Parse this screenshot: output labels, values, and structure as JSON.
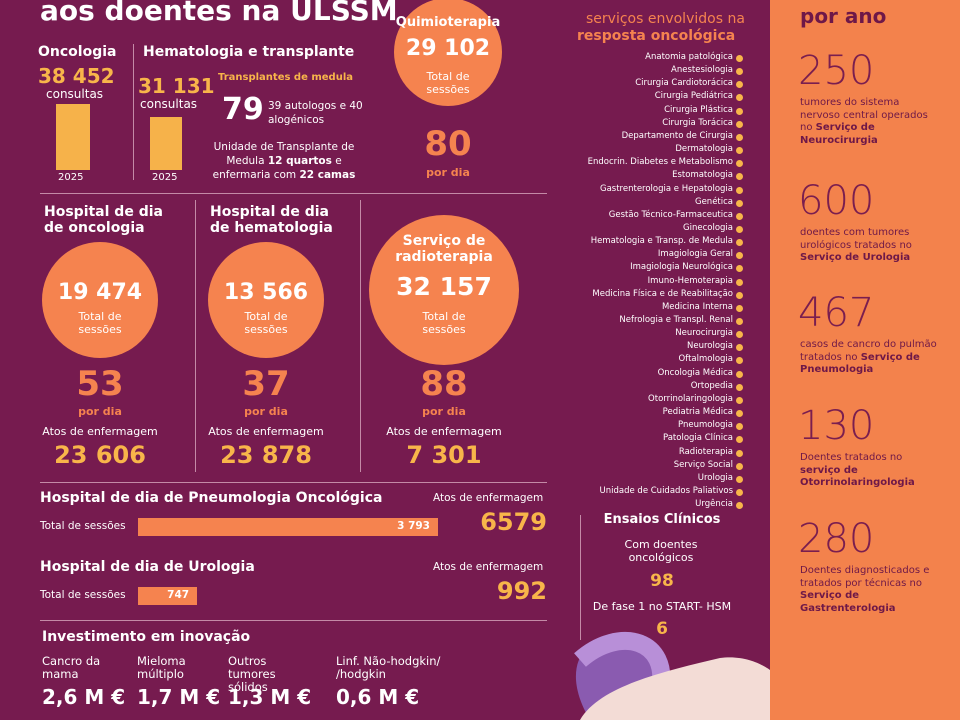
{
  "title": "aos doentes na ULSSM",
  "consultas": [
    {
      "title": "Oncologia",
      "number": {
        "value": 38452,
        "label": "38 452"
      },
      "unit": "consultas",
      "year": "2025"
    },
    {
      "title": "Hematologia e transplante",
      "number": {
        "value": 31131,
        "label": "31 131"
      },
      "unit": "consultas",
      "year": "2025"
    }
  ],
  "transplantes": {
    "title": "Transplantes de medula",
    "number": 79,
    "detail": "39 autologos e 40 alogénicos",
    "note": [
      "Unidade de Transplante de Medula",
      "12 quartos",
      "e enfermaria com",
      "22 camas"
    ]
  },
  "quimioterapia": {
    "title": "Quimioterapia",
    "number": "29 102",
    "label": "Total de sessões",
    "per_day": 80,
    "per_day_label": "por dia"
  },
  "hospitais_dia": [
    {
      "title": "Hospital de dia de oncologia",
      "number": "19 474",
      "label": "Total de sessões",
      "per_day": 53,
      "per_day_label": "por dia",
      "acts_label": "Atos de enfermagem",
      "acts": "23 606"
    },
    {
      "title": "Hospital de dia de hematologia",
      "number": "13 566",
      "label": "Total de sessões",
      "per_day": 37,
      "per_day_label": "por dia",
      "acts_label": "Atos de enfermagem",
      "acts": "23 878"
    },
    {
      "title": "Serviço de radioterapia",
      "number": "32 157",
      "label": "Total de sessões",
      "per_day": 88,
      "per_day_label": "por dia",
      "acts_label": "Atos de enfermagem",
      "acts": "7 301"
    }
  ],
  "barras": [
    {
      "title": "Hospital de dia de Pneumologia Oncológica",
      "label": "Total de sessões",
      "sessions": {
        "value": 3793,
        "label": "3 793"
      },
      "acts_label": "Atos de enfermagem",
      "acts": 6579
    },
    {
      "title": "Hospital de dia de Urologia",
      "label": "Total de sessões",
      "sessions": {
        "value": 747,
        "label": "747"
      },
      "acts_label": "Atos de enfermagem",
      "acts": 992
    }
  ],
  "investimento": {
    "title": "Investimento em inovação",
    "items": [
      {
        "label": "Cancro da mama",
        "value": "2,6 M €"
      },
      {
        "label": "Mieloma múltiplo",
        "value": "1,7 M €"
      },
      {
        "label": "Outros tumores sólidos",
        "value": "1,3 M €"
      },
      {
        "label": "Linf. Não-hodgkin/ /hodgkin",
        "value": "0,6 M €"
      }
    ]
  },
  "servicos": {
    "subtitle": "serviços envolvidos na",
    "title": "resposta oncológica",
    "items": [
      "Anatomia patológica",
      "Anestesiologia",
      "Cirurgia Cardiotorácica",
      "Cirurgia Pediátrica",
      "Cirurgia Plástica",
      "Cirurgia Torácica",
      "Departamento de Cirurgia",
      "Dermatologia",
      "Endocrin. Diabetes e Metabolismo",
      "Estomatologia",
      "Gastrenterologia e Hepatologia",
      "Genética",
      "Gestão Técnico-Farmaceutica",
      "Ginecologia",
      "Hematologia e Transp. de Medula",
      "Imagiologia Geral",
      "Imagiologia Neurológica",
      "Imuno-Hemoterapia",
      "Medicina Física e de Reabilitação",
      "Medicina Interna",
      "Nefrologia e Transpl. Renal",
      "Neurocirurgia",
      "Neurologia",
      "Oftalmologia",
      "Oncologia Médica",
      "Ortopedia",
      "Otorrinolaringologia",
      "Pediatria Médica",
      "Pneumologia",
      "Patologia Clínica",
      "Radioterapia",
      "Serviço Social",
      "Urologia",
      "Unidade de Cuidados Paliativos",
      "Urgência"
    ]
  },
  "ensaios": {
    "title": "Ensaios Clínicos",
    "items": [
      {
        "label": "Com doentes oncológicos",
        "value": 98
      },
      {
        "label": "De fase 1 no START- HSM",
        "value": 6
      }
    ]
  },
  "por_ano": {
    "title": "por ano",
    "items": [
      {
        "number": 250,
        "text": "tumores do sistema nervoso central operados no",
        "service": "Serviço de Neurocirurgia"
      },
      {
        "number": 600,
        "text": "doentes com tumores urológicos tratados no",
        "service": "Serviço de Urologia"
      },
      {
        "number": 467,
        "text": "casos de cancro do pulmão tratados no",
        "service": "Serviço de Pneumologia"
      },
      {
        "number": 130,
        "text": "Doentes tratados no",
        "service": "serviço de Otorrinolaringologia"
      },
      {
        "number": 280,
        "text": "Doentes diagnosticados e tratados por técnicas no",
        "service": "Serviço de Gastrenterologia"
      }
    ]
  }
}
